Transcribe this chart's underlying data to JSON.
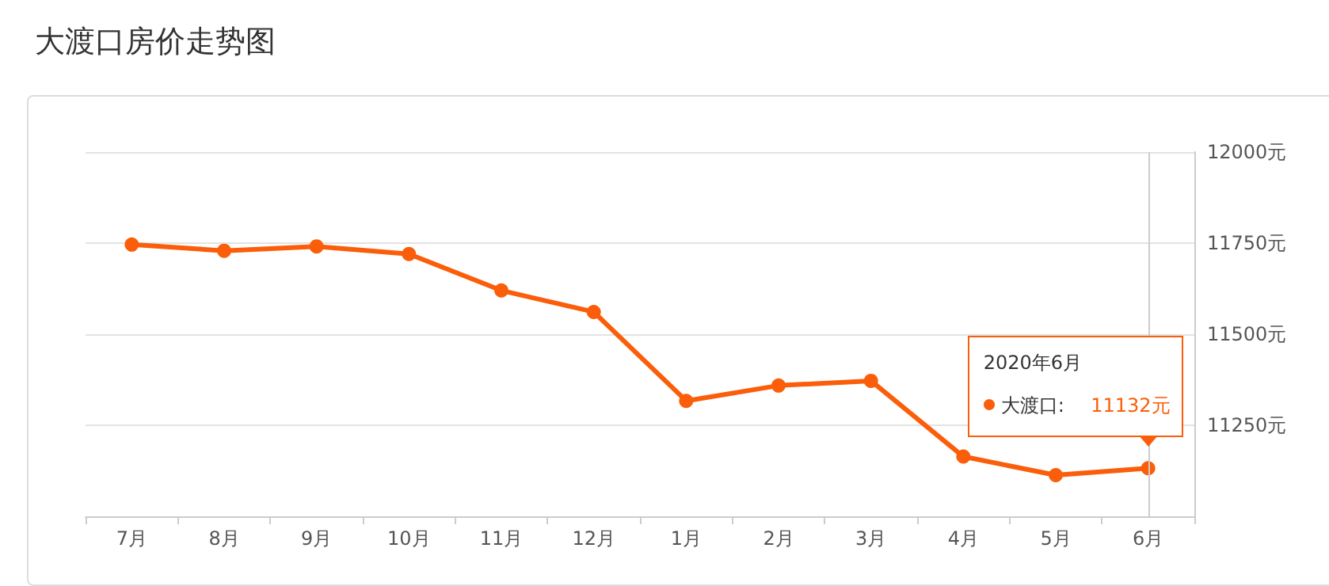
{
  "chart_data": {
    "type": "line",
    "title": "大渡口房价走势图",
    "categories": [
      "7月",
      "8月",
      "9月",
      "10月",
      "11月",
      "12月",
      "1月",
      "2月",
      "3月",
      "4月",
      "5月",
      "6月"
    ],
    "series": [
      {
        "color": "#fa5e0a",
        "values": [
          11746,
          11729,
          11741,
          11720,
          11620,
          11561,
          11317,
          11359,
          11372,
          11164,
          11113,
          11132
        ]
      }
    ],
    "ylim": [
      11000,
      12000
    ],
    "yticks": [
      {
        "value": 11250,
        "label": "11250元"
      },
      {
        "value": 11500,
        "label": "11500元"
      },
      {
        "value": 11750,
        "label": "11750元"
      },
      {
        "value": 12000,
        "label": "12000元"
      }
    ],
    "grid": "y",
    "marker": "circle",
    "line_style": "solid",
    "ref_lines": [
      {
        "axis": "x",
        "value": "6月",
        "color": "#cccccc"
      }
    ],
    "annotations": [
      "2020年6月",
      "大渡口:",
      "11132元"
    ]
  }
}
